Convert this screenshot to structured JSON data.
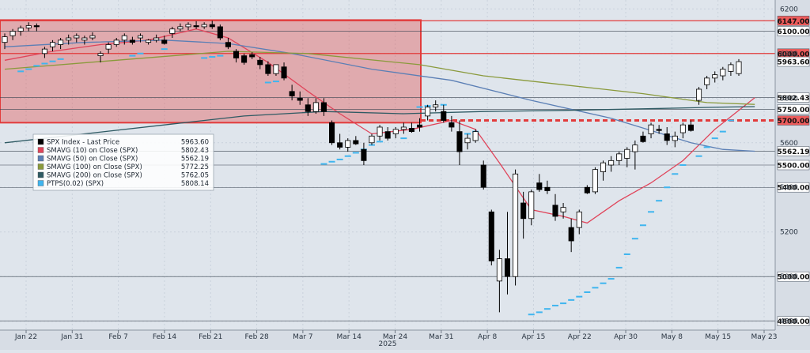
{
  "chart_data": {
    "type": "candlestick",
    "title": "",
    "xlabel": "",
    "ylabel": "",
    "ylim": [
      4760,
      6240
    ],
    "year_label": "2025",
    "x_tick_labels": [
      "Jan 22",
      "Jan 31",
      "Feb 7",
      "Feb 14",
      "Feb 21",
      "Feb 28",
      "Mar 7",
      "Mar 14",
      "Mar 24",
      "Mar 31",
      "Apr 8",
      "Apr 15",
      "Apr 22",
      "Apr 30",
      "May 8",
      "May 15",
      "May 23"
    ],
    "y_tick_labels": [
      "6200",
      "6000",
      "5800",
      "5600",
      "5400",
      "5200",
      "5000",
      "4800"
    ],
    "horizontal_levels": [
      {
        "value": 6147,
        "label": "6147.00",
        "color": "#e23b3b"
      },
      {
        "value": 6100,
        "label": "6100.00",
        "color": "#ffffff"
      },
      {
        "value": 6000,
        "label": "6000.00",
        "color": "#e23b3b"
      },
      {
        "value": 5963.6,
        "label": "5963.60",
        "color": "#ffffff"
      },
      {
        "value": 5802.43,
        "label": "5802.43",
        "color": "#ffffff"
      },
      {
        "value": 5750,
        "label": "5750.00",
        "color": "#ffffff"
      },
      {
        "value": 5700,
        "label": "5700.00",
        "color": "#e23b3b"
      },
      {
        "value": 5562.19,
        "label": "5562.19",
        "color": "#ffffff"
      },
      {
        "value": 5500,
        "label": "5500.00",
        "color": "#ffffff"
      },
      {
        "value": 5400,
        "label": "5400.00",
        "color": "#ffffff"
      },
      {
        "value": 5000,
        "label": "5000.00",
        "color": "#ffffff"
      },
      {
        "value": 4800,
        "label": "4800.00",
        "color": "#ffffff"
      }
    ],
    "shaded_zone": {
      "y_low": 5690,
      "y_high": 6150,
      "color": "#e23b3b"
    },
    "candles": [
      {
        "o": 6050,
        "h": 6090,
        "l": 6020,
        "c": 6075
      },
      {
        "o": 6080,
        "h": 6110,
        "l": 6060,
        "c": 6100
      },
      {
        "o": 6100,
        "h": 6125,
        "l": 6080,
        "c": 6115
      },
      {
        "o": 6115,
        "h": 6140,
        "l": 6100,
        "c": 6125
      },
      {
        "o": 6125,
        "h": 6135,
        "l": 6100,
        "c": 6120
      },
      {
        "o": 6000,
        "h": 6030,
        "l": 5980,
        "c": 6020
      },
      {
        "o": 6030,
        "h": 6060,
        "l": 6010,
        "c": 6050
      },
      {
        "o": 6040,
        "h": 6070,
        "l": 6020,
        "c": 6060
      },
      {
        "o": 6060,
        "h": 6085,
        "l": 6040,
        "c": 6070
      },
      {
        "o": 6070,
        "h": 6090,
        "l": 6050,
        "c": 6080
      },
      {
        "o": 6060,
        "h": 6080,
        "l": 6040,
        "c": 6070
      },
      {
        "o": 6070,
        "h": 6095,
        "l": 6060,
        "c": 6080
      },
      {
        "o": 5990,
        "h": 6010,
        "l": 5960,
        "c": 6000
      },
      {
        "o": 6020,
        "h": 6050,
        "l": 6000,
        "c": 6040
      },
      {
        "o": 6040,
        "h": 6070,
        "l": 6030,
        "c": 6060
      },
      {
        "o": 6060,
        "h": 6090,
        "l": 6040,
        "c": 6080
      },
      {
        "o": 6060,
        "h": 6075,
        "l": 6040,
        "c": 6050
      },
      {
        "o": 6070,
        "h": 6090,
        "l": 6050,
        "c": 6080
      },
      {
        "o": 6050,
        "h": 6065,
        "l": 6040,
        "c": 6060
      },
      {
        "o": 6060,
        "h": 6085,
        "l": 6050,
        "c": 6070
      },
      {
        "o": 6060,
        "h": 6080,
        "l": 6040,
        "c": 6045
      },
      {
        "o": 6090,
        "h": 6120,
        "l": 6070,
        "c": 6110
      },
      {
        "o": 6110,
        "h": 6135,
        "l": 6100,
        "c": 6120
      },
      {
        "o": 6120,
        "h": 6140,
        "l": 6105,
        "c": 6130
      },
      {
        "o": 6125,
        "h": 6145,
        "l": 6110,
        "c": 6120
      },
      {
        "o": 6120,
        "h": 6140,
        "l": 6110,
        "c": 6130
      },
      {
        "o": 6130,
        "h": 6147,
        "l": 6110,
        "c": 6120
      },
      {
        "o": 6120,
        "h": 6130,
        "l": 6060,
        "c": 6070
      },
      {
        "o": 6050,
        "h": 6070,
        "l": 6020,
        "c": 6030
      },
      {
        "o": 6010,
        "h": 6020,
        "l": 5960,
        "c": 5980
      },
      {
        "o": 5990,
        "h": 6000,
        "l": 5950,
        "c": 5960
      },
      {
        "o": 5995,
        "h": 6005,
        "l": 5975,
        "c": 5985
      },
      {
        "o": 5970,
        "h": 5985,
        "l": 5930,
        "c": 5950
      },
      {
        "o": 5950,
        "h": 5965,
        "l": 5900,
        "c": 5910
      },
      {
        "o": 5910,
        "h": 5950,
        "l": 5900,
        "c": 5950
      },
      {
        "o": 5940,
        "h": 5960,
        "l": 5880,
        "c": 5890
      },
      {
        "o": 5830,
        "h": 5860,
        "l": 5790,
        "c": 5810
      },
      {
        "o": 5800,
        "h": 5830,
        "l": 5770,
        "c": 5790
      },
      {
        "o": 5770,
        "h": 5800,
        "l": 5720,
        "c": 5740
      },
      {
        "o": 5740,
        "h": 5800,
        "l": 5730,
        "c": 5780
      },
      {
        "o": 5780,
        "h": 5800,
        "l": 5720,
        "c": 5740
      },
      {
        "o": 5690,
        "h": 5700,
        "l": 5590,
        "c": 5600
      },
      {
        "o": 5600,
        "h": 5640,
        "l": 5570,
        "c": 5580
      },
      {
        "o": 5580,
        "h": 5620,
        "l": 5560,
        "c": 5610
      },
      {
        "o": 5610,
        "h": 5630,
        "l": 5590,
        "c": 5595
      },
      {
        "o": 5570,
        "h": 5600,
        "l": 5500,
        "c": 5520
      },
      {
        "o": 5600,
        "h": 5640,
        "l": 5590,
        "c": 5630
      },
      {
        "o": 5630,
        "h": 5680,
        "l": 5610,
        "c": 5670
      },
      {
        "o": 5650,
        "h": 5670,
        "l": 5610,
        "c": 5620
      },
      {
        "o": 5640,
        "h": 5670,
        "l": 5620,
        "c": 5660
      },
      {
        "o": 5660,
        "h": 5690,
        "l": 5640,
        "c": 5670
      },
      {
        "o": 5665,
        "h": 5690,
        "l": 5645,
        "c": 5650
      },
      {
        "o": 5680,
        "h": 5710,
        "l": 5650,
        "c": 5670
      },
      {
        "o": 5720,
        "h": 5770,
        "l": 5700,
        "c": 5760
      },
      {
        "o": 5760,
        "h": 5790,
        "l": 5740,
        "c": 5770
      },
      {
        "o": 5740,
        "h": 5770,
        "l": 5690,
        "c": 5700
      },
      {
        "o": 5690,
        "h": 5720,
        "l": 5650,
        "c": 5670
      },
      {
        "o": 5650,
        "h": 5700,
        "l": 5500,
        "c": 5560
      },
      {
        "o": 5600,
        "h": 5640,
        "l": 5570,
        "c": 5620
      },
      {
        "o": 5610,
        "h": 5660,
        "l": 5600,
        "c": 5650
      },
      {
        "o": 5500,
        "h": 5520,
        "l": 5390,
        "c": 5400
      },
      {
        "o": 5290,
        "h": 5300,
        "l": 5050,
        "c": 5070
      },
      {
        "o": 4980,
        "h": 5120,
        "l": 4840,
        "c": 5080
      },
      {
        "o": 5080,
        "h": 5290,
        "l": 4920,
        "c": 5000
      },
      {
        "o": 5000,
        "h": 5480,
        "l": 4960,
        "c": 5460
      },
      {
        "o": 5330,
        "h": 5380,
        "l": 5170,
        "c": 5260
      },
      {
        "o": 5260,
        "h": 5390,
        "l": 5230,
        "c": 5380
      },
      {
        "o": 5420,
        "h": 5460,
        "l": 5380,
        "c": 5390
      },
      {
        "o": 5400,
        "h": 5430,
        "l": 5370,
        "c": 5385
      },
      {
        "o": 5320,
        "h": 5370,
        "l": 5250,
        "c": 5270
      },
      {
        "o": 5290,
        "h": 5330,
        "l": 5260,
        "c": 5310
      },
      {
        "o": 5220,
        "h": 5260,
        "l": 5110,
        "c": 5160
      },
      {
        "o": 5220,
        "h": 5300,
        "l": 5190,
        "c": 5290
      },
      {
        "o": 5400,
        "h": 5410,
        "l": 5370,
        "c": 5375
      },
      {
        "o": 5380,
        "h": 5490,
        "l": 5370,
        "c": 5480
      },
      {
        "o": 5470,
        "h": 5520,
        "l": 5430,
        "c": 5510
      },
      {
        "o": 5500,
        "h": 5540,
        "l": 5470,
        "c": 5520
      },
      {
        "o": 5520,
        "h": 5560,
        "l": 5500,
        "c": 5550
      },
      {
        "o": 5530,
        "h": 5580,
        "l": 5490,
        "c": 5570
      },
      {
        "o": 5560,
        "h": 5610,
        "l": 5480,
        "c": 5590
      },
      {
        "o": 5630,
        "h": 5650,
        "l": 5600,
        "c": 5605
      },
      {
        "o": 5640,
        "h": 5690,
        "l": 5620,
        "c": 5680
      },
      {
        "o": 5660,
        "h": 5680,
        "l": 5640,
        "c": 5655
      },
      {
        "o": 5640,
        "h": 5670,
        "l": 5590,
        "c": 5610
      },
      {
        "o": 5610,
        "h": 5650,
        "l": 5580,
        "c": 5630
      },
      {
        "o": 5645,
        "h": 5690,
        "l": 5620,
        "c": 5680
      },
      {
        "o": 5680,
        "h": 5700,
        "l": 5650,
        "c": 5655
      },
      {
        "o": 5790,
        "h": 5850,
        "l": 5770,
        "c": 5840
      },
      {
        "o": 5860,
        "h": 5900,
        "l": 5840,
        "c": 5890
      },
      {
        "o": 5890,
        "h": 5920,
        "l": 5870,
        "c": 5905
      },
      {
        "o": 5900,
        "h": 5940,
        "l": 5880,
        "c": 5930
      },
      {
        "o": 5920,
        "h": 5960,
        "l": 5900,
        "c": 5950
      },
      {
        "o": 5910,
        "h": 5975,
        "l": 5900,
        "c": 5963.6
      }
    ],
    "series": [
      {
        "name": "SPX Index - Last Price",
        "value_label": "5963.60",
        "color": "#000000",
        "type": "candles"
      },
      {
        "name": "SMAVG (10)  on Close (SPX)",
        "value_label": "5802.43",
        "color": "#e0445a",
        "points": [
          [
            0,
            5970
          ],
          [
            6,
            6010
          ],
          [
            12,
            6040
          ],
          [
            18,
            6060
          ],
          [
            24,
            6110
          ],
          [
            28,
            6070
          ],
          [
            33,
            5960
          ],
          [
            38,
            5830
          ],
          [
            42,
            5730
          ],
          [
            46,
            5640
          ],
          [
            51,
            5660
          ],
          [
            56,
            5700
          ],
          [
            59,
            5660
          ],
          [
            62,
            5510
          ],
          [
            66,
            5300
          ],
          [
            70,
            5270
          ],
          [
            73,
            5240
          ],
          [
            77,
            5340
          ],
          [
            81,
            5420
          ],
          [
            85,
            5520
          ],
          [
            89,
            5660
          ],
          [
            94,
            5802
          ]
        ]
      },
      {
        "name": "SMAVG (50)  on Close (SPX)",
        "value_label": "5562.19",
        "color": "#5b7fb5",
        "points": [
          [
            0,
            6030
          ],
          [
            10,
            6050
          ],
          [
            20,
            6060
          ],
          [
            28,
            6045
          ],
          [
            36,
            6000
          ],
          [
            46,
            5930
          ],
          [
            56,
            5880
          ],
          [
            66,
            5790
          ],
          [
            76,
            5710
          ],
          [
            86,
            5600
          ],
          [
            90,
            5570
          ],
          [
            94,
            5562
          ]
        ]
      },
      {
        "name": "SMAVG (100)  on Close (SPX)",
        "value_label": "5772.25",
        "color": "#8a9a3c",
        "points": [
          [
            0,
            5930
          ],
          [
            14,
            5970
          ],
          [
            28,
            6010
          ],
          [
            38,
            6000
          ],
          [
            52,
            5950
          ],
          [
            60,
            5900
          ],
          [
            70,
            5860
          ],
          [
            80,
            5820
          ],
          [
            88,
            5780
          ],
          [
            94,
            5772
          ]
        ]
      },
      {
        "name": "SMAVG (200)  on Close (SPX)",
        "value_label": "5762.05",
        "color": "#2e5a63",
        "points": [
          [
            0,
            5600
          ],
          [
            10,
            5640
          ],
          [
            20,
            5680
          ],
          [
            30,
            5720
          ],
          [
            40,
            5740
          ],
          [
            50,
            5730
          ],
          [
            60,
            5740
          ],
          [
            70,
            5745
          ],
          [
            80,
            5752
          ],
          [
            90,
            5760
          ],
          [
            94,
            5762
          ]
        ]
      },
      {
        "name": "PTPS(0.02) (SPX)",
        "value_label": "5808.14",
        "color": "#3fb5ef",
        "dots": [
          [
            2,
            5920
          ],
          [
            3,
            5930
          ],
          [
            4,
            5945
          ],
          [
            5,
            5955
          ],
          [
            6,
            5965
          ],
          [
            7,
            5975
          ],
          [
            16,
            5990
          ],
          [
            17,
            6000
          ],
          [
            20,
            6020
          ],
          [
            25,
            5980
          ],
          [
            26,
            5985
          ],
          [
            27,
            5990
          ],
          [
            33,
            5870
          ],
          [
            34,
            5875
          ],
          [
            40,
            5505
          ],
          [
            41,
            5515
          ],
          [
            42,
            5525
          ],
          [
            43,
            5540
          ],
          [
            44,
            5555
          ],
          [
            45,
            5570
          ],
          [
            46,
            5590
          ],
          [
            47,
            5605
          ],
          [
            50,
            5620
          ],
          [
            52,
            5760
          ],
          [
            53,
            5765
          ],
          [
            55,
            5770
          ],
          [
            58,
            5640
          ],
          [
            59,
            5650
          ],
          [
            66,
            4830
          ],
          [
            67,
            4840
          ],
          [
            68,
            4855
          ],
          [
            69,
            4870
          ],
          [
            70,
            4880
          ],
          [
            71,
            4895
          ],
          [
            72,
            4910
          ],
          [
            73,
            4930
          ],
          [
            74,
            4950
          ],
          [
            75,
            4970
          ],
          [
            76,
            4990
          ],
          [
            77,
            5040
          ],
          [
            78,
            5100
          ],
          [
            79,
            5170
          ],
          [
            80,
            5230
          ],
          [
            81,
            5290
          ],
          [
            82,
            5340
          ],
          [
            83,
            5400
          ],
          [
            84,
            5460
          ],
          [
            85,
            5500
          ],
          [
            87,
            5540
          ],
          [
            88,
            5580
          ],
          [
            89,
            5620
          ],
          [
            90,
            5650
          ],
          [
            91,
            5700
          ]
        ]
      }
    ]
  }
}
